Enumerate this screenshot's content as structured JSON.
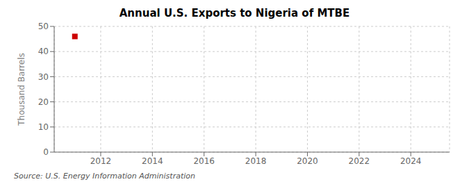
{
  "chart_data": {
    "type": "scatter",
    "title": "Annual U.S. Exports to Nigeria of MTBE",
    "ylabel": "Thousand Barrels",
    "annotations": [
      "Source: U.S. Energy Information Administration"
    ],
    "x": [
      2011
    ],
    "values": [
      46
    ],
    "color": "#cc0000",
    "marker": "square",
    "xlim": [
      2010.2,
      2025.5
    ],
    "ylim": [
      0,
      50
    ],
    "xticks": [
      2012,
      2014,
      2016,
      2018,
      2020,
      2022,
      2024
    ],
    "yticks": [
      0,
      10,
      20,
      30,
      40,
      50
    ],
    "grid": true
  }
}
